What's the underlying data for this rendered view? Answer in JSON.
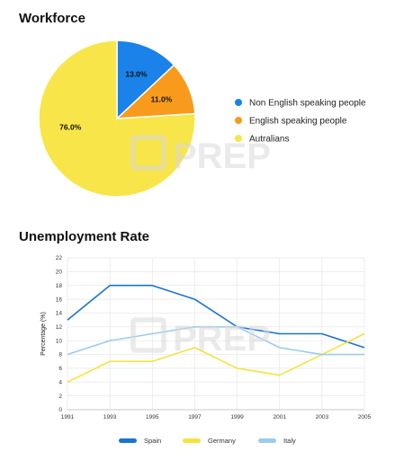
{
  "chart_data": [
    {
      "type": "pie",
      "title": "Workforce",
      "slices": [
        {
          "label": "Non English speaking people",
          "value": 13.0,
          "display": "13.0%",
          "color": "#1a82e8"
        },
        {
          "label": "English speaking people",
          "value": 11.0,
          "display": "11.0%",
          "color": "#f89b1c"
        },
        {
          "label": "Autralians",
          "value": 76.0,
          "display": "76.0%",
          "color": "#f8e549"
        }
      ],
      "legend_position": "right"
    },
    {
      "type": "line",
      "title": "Unemployment Rate",
      "ylabel": "Percentage (%)",
      "xlabel": "",
      "x": [
        1991,
        1993,
        1995,
        1997,
        1999,
        2001,
        2003,
        2005
      ],
      "x_ticks": [
        "1991",
        "1993",
        "1995",
        "1997",
        "1999",
        "2001",
        "2003",
        "2005"
      ],
      "ylim": [
        0,
        22
      ],
      "y_ticks": [
        "0",
        "2",
        "4",
        "6",
        "8",
        "10",
        "12",
        "14",
        "16",
        "18",
        "20",
        "22"
      ],
      "grid": true,
      "legend_position": "bottom",
      "series": [
        {
          "name": "Spain",
          "color": "#1a74d2",
          "values": [
            13,
            18,
            18,
            16,
            12,
            11,
            11,
            9
          ]
        },
        {
          "name": "Germany",
          "color": "#f5e33d",
          "values": [
            4,
            7,
            7,
            9,
            6,
            5,
            8,
            11
          ]
        },
        {
          "name": "Italy",
          "color": "#9ccbec",
          "values": [
            8,
            10,
            11,
            12,
            12,
            9,
            8,
            8
          ]
        }
      ]
    }
  ],
  "watermark": "PREP"
}
